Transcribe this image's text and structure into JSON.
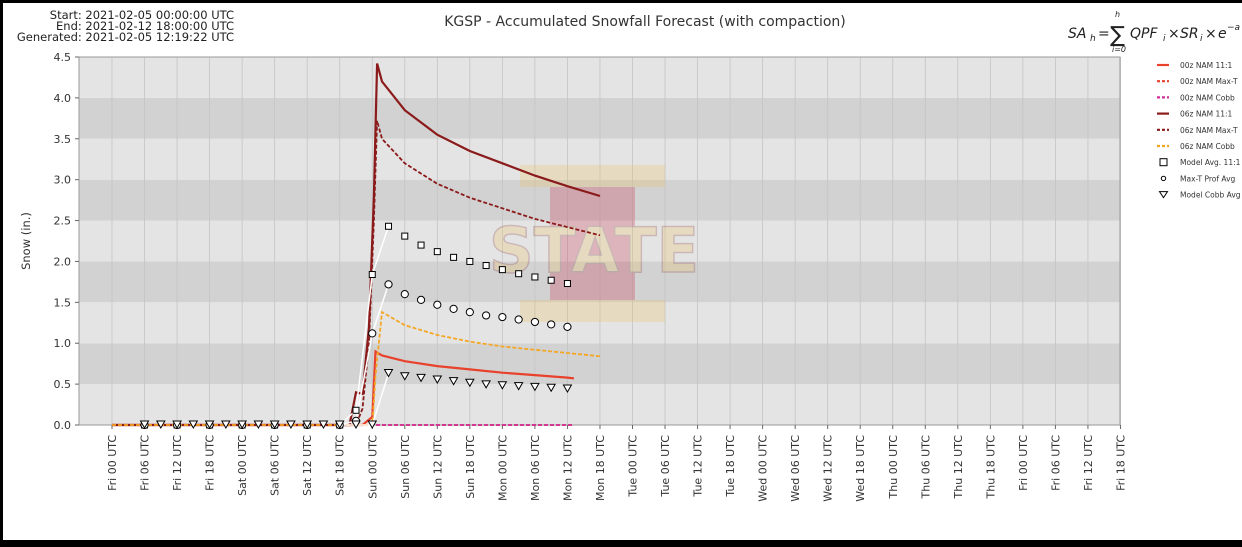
{
  "header": {
    "start": "Start: 2021-02-05 00:00:00 UTC",
    "end": "End: 2021-02-12 18:00:00 UTC",
    "generated": "Generated: 2021-02-05 12:19:22 UTC",
    "title": "KGSP - Accumulated Snowfall Forecast (with compaction)",
    "formula": "SA_h = Σ_{i=0}^{h} QPF_i × SR_i × e^{-a}"
  },
  "watermark": "STATE",
  "chart_data": {
    "type": "line",
    "title": "KGSP - Accumulated Snowfall Forecast (with compaction)",
    "xlabel": "",
    "ylabel": "Snow (in.)",
    "ylim": [
      0,
      4.5
    ],
    "yticks": [
      "0.0",
      "0.5",
      "1.0",
      "1.5",
      "2.0",
      "2.5",
      "3.0",
      "3.5",
      "4.0",
      "4.5"
    ],
    "categories": [
      "Fri 00 UTC",
      "Fri 06 UTC",
      "Fri 12 UTC",
      "Fri 18 UTC",
      "Sat 00 UTC",
      "Sat 06 UTC",
      "Sat 12 UTC",
      "Sat 18 UTC",
      "Sun 00 UTC",
      "Sun 06 UTC",
      "Sun 12 UTC",
      "Sun 18 UTC",
      "Mon 00 UTC",
      "Mon 06 UTC",
      "Mon 12 UTC",
      "Mon 18 UTC",
      "Tue 00 UTC",
      "Tue 06 UTC",
      "Tue 12 UTC",
      "Tue 18 UTC",
      "Wed 00 UTC",
      "Wed 06 UTC",
      "Wed 12 UTC",
      "Wed 18 UTC",
      "Thu 00 UTC",
      "Thu 06 UTC",
      "Thu 12 UTC",
      "Thu 18 UTC",
      "Fri 00 UTC",
      "Fri 06 UTC",
      "Fri 12 UTC",
      "Fri 18 UTC"
    ],
    "grid": "alternating horizontal bands",
    "legend_position": "right",
    "series": [
      {
        "name": "00z NAM 11:1",
        "color": "#e8412c",
        "style": "solid",
        "x": [
          0,
          1,
          2,
          3,
          4,
          5,
          6,
          7,
          7.5,
          7.7,
          8,
          8.1,
          8.3,
          9,
          10,
          11,
          12,
          13,
          14,
          14.2
        ],
        "y": [
          0,
          0,
          0,
          0,
          0,
          0,
          0,
          0,
          0,
          0,
          0.1,
          0.9,
          0.85,
          0.78,
          0.72,
          0.68,
          0.64,
          0.61,
          0.58,
          0.57
        ]
      },
      {
        "name": "00z NAM Max-T",
        "color": "#e8412c",
        "style": "dash",
        "x": [
          0,
          7.7,
          8,
          8.1,
          14.2
        ],
        "y": [
          0,
          0,
          0,
          0,
          0
        ]
      },
      {
        "name": "00z NAM Cobb",
        "color": "#d0309a",
        "style": "dash",
        "x": [
          0,
          7.7,
          8,
          8.1,
          14.2
        ],
        "y": [
          0,
          0,
          0,
          0,
          0
        ]
      },
      {
        "name": "06z NAM 11:1",
        "color": "#8b1a1a",
        "style": "solid",
        "x": [
          0,
          7.3,
          7.5,
          7.7,
          7.9,
          8.05,
          8.15,
          8.3,
          9,
          10,
          11,
          12,
          13,
          14,
          15
        ],
        "y": [
          0,
          0,
          0.4,
          0.38,
          1.2,
          2.8,
          4.42,
          4.2,
          3.85,
          3.55,
          3.35,
          3.2,
          3.05,
          2.92,
          2.8
        ]
      },
      {
        "name": "06z NAM Max-T",
        "color": "#8b1a1a",
        "style": "dash",
        "x": [
          0,
          7.5,
          7.7,
          7.9,
          8.05,
          8.15,
          8.3,
          9,
          10,
          11,
          12,
          13,
          14,
          15
        ],
        "y": [
          0,
          0,
          0.2,
          1.0,
          2.5,
          3.72,
          3.5,
          3.2,
          2.95,
          2.78,
          2.65,
          2.52,
          2.42,
          2.32
        ]
      },
      {
        "name": "06z NAM Cobb",
        "color": "#f5a623",
        "style": "dash",
        "x": [
          0,
          7.7,
          8,
          8.1,
          8.3,
          9,
          10,
          11,
          12,
          13,
          14,
          15
        ],
        "y": [
          0,
          0,
          0,
          0.6,
          1.38,
          1.22,
          1.1,
          1.02,
          0.96,
          0.92,
          0.88,
          0.84
        ]
      },
      {
        "name": "Model Avg. 11:1",
        "color": "#ffffff",
        "style": "markers-square",
        "x": [
          1,
          2,
          3,
          4,
          5,
          6,
          7,
          7.5,
          8,
          8.5,
          9,
          9.5,
          10,
          10.5,
          11,
          11.5,
          12,
          12.5,
          13,
          13.5,
          14
        ],
        "y": [
          0,
          0,
          0,
          0,
          0,
          0,
          0,
          0.18,
          1.84,
          2.43,
          2.31,
          2.2,
          2.12,
          2.05,
          2.0,
          1.95,
          1.9,
          1.85,
          1.81,
          1.77,
          1.73
        ]
      },
      {
        "name": "Max-T Prof Avg",
        "color": "#ffffff",
        "style": "markers-circle",
        "x": [
          1,
          2,
          3,
          4,
          5,
          6,
          7,
          7.5,
          8,
          8.5,
          9,
          9.5,
          10,
          10.5,
          11,
          11.5,
          12,
          12.5,
          13,
          13.5,
          14
        ],
        "y": [
          0,
          0,
          0,
          0,
          0,
          0,
          0,
          0.05,
          1.12,
          1.72,
          1.6,
          1.53,
          1.47,
          1.42,
          1.38,
          1.34,
          1.32,
          1.29,
          1.26,
          1.23,
          1.2
        ]
      },
      {
        "name": "Model Cobb Avg",
        "color": "#ffffff",
        "style": "markers-triangle",
        "x": [
          1,
          1.5,
          2,
          2.5,
          3,
          3.5,
          4,
          4.5,
          5,
          5.5,
          6,
          6.5,
          7,
          7.5,
          8,
          8.5,
          9,
          9.5,
          10,
          10.5,
          11,
          11.5,
          12,
          12.5,
          13,
          13.5,
          14
        ],
        "y": [
          0,
          0,
          0,
          0,
          0,
          0,
          0,
          0,
          0,
          0,
          0,
          0,
          0,
          0,
          0,
          0.63,
          0.59,
          0.57,
          0.55,
          0.53,
          0.51,
          0.49,
          0.48,
          0.47,
          0.46,
          0.45,
          0.44
        ]
      }
    ]
  },
  "legend": [
    {
      "label": "00z NAM 11:1",
      "kind": "solid",
      "color": "#e8412c"
    },
    {
      "label": "00z NAM Max-T",
      "kind": "dash",
      "color": "#e8412c"
    },
    {
      "label": "00z NAM Cobb",
      "kind": "dash",
      "color": "#d0309a"
    },
    {
      "label": "06z NAM 11:1",
      "kind": "solid",
      "color": "#8b1a1a"
    },
    {
      "label": "06z NAM Max-T",
      "kind": "dash",
      "color": "#8b1a1a"
    },
    {
      "label": "06z NAM Cobb",
      "kind": "dash",
      "color": "#f5a623"
    },
    {
      "label": "Model Avg. 11:1",
      "kind": "square",
      "color": "#000000"
    },
    {
      "label": "Max-T Prof Avg",
      "kind": "circle",
      "color": "#000000"
    },
    {
      "label": "Model Cobb Avg",
      "kind": "triangle",
      "color": "#000000"
    }
  ]
}
